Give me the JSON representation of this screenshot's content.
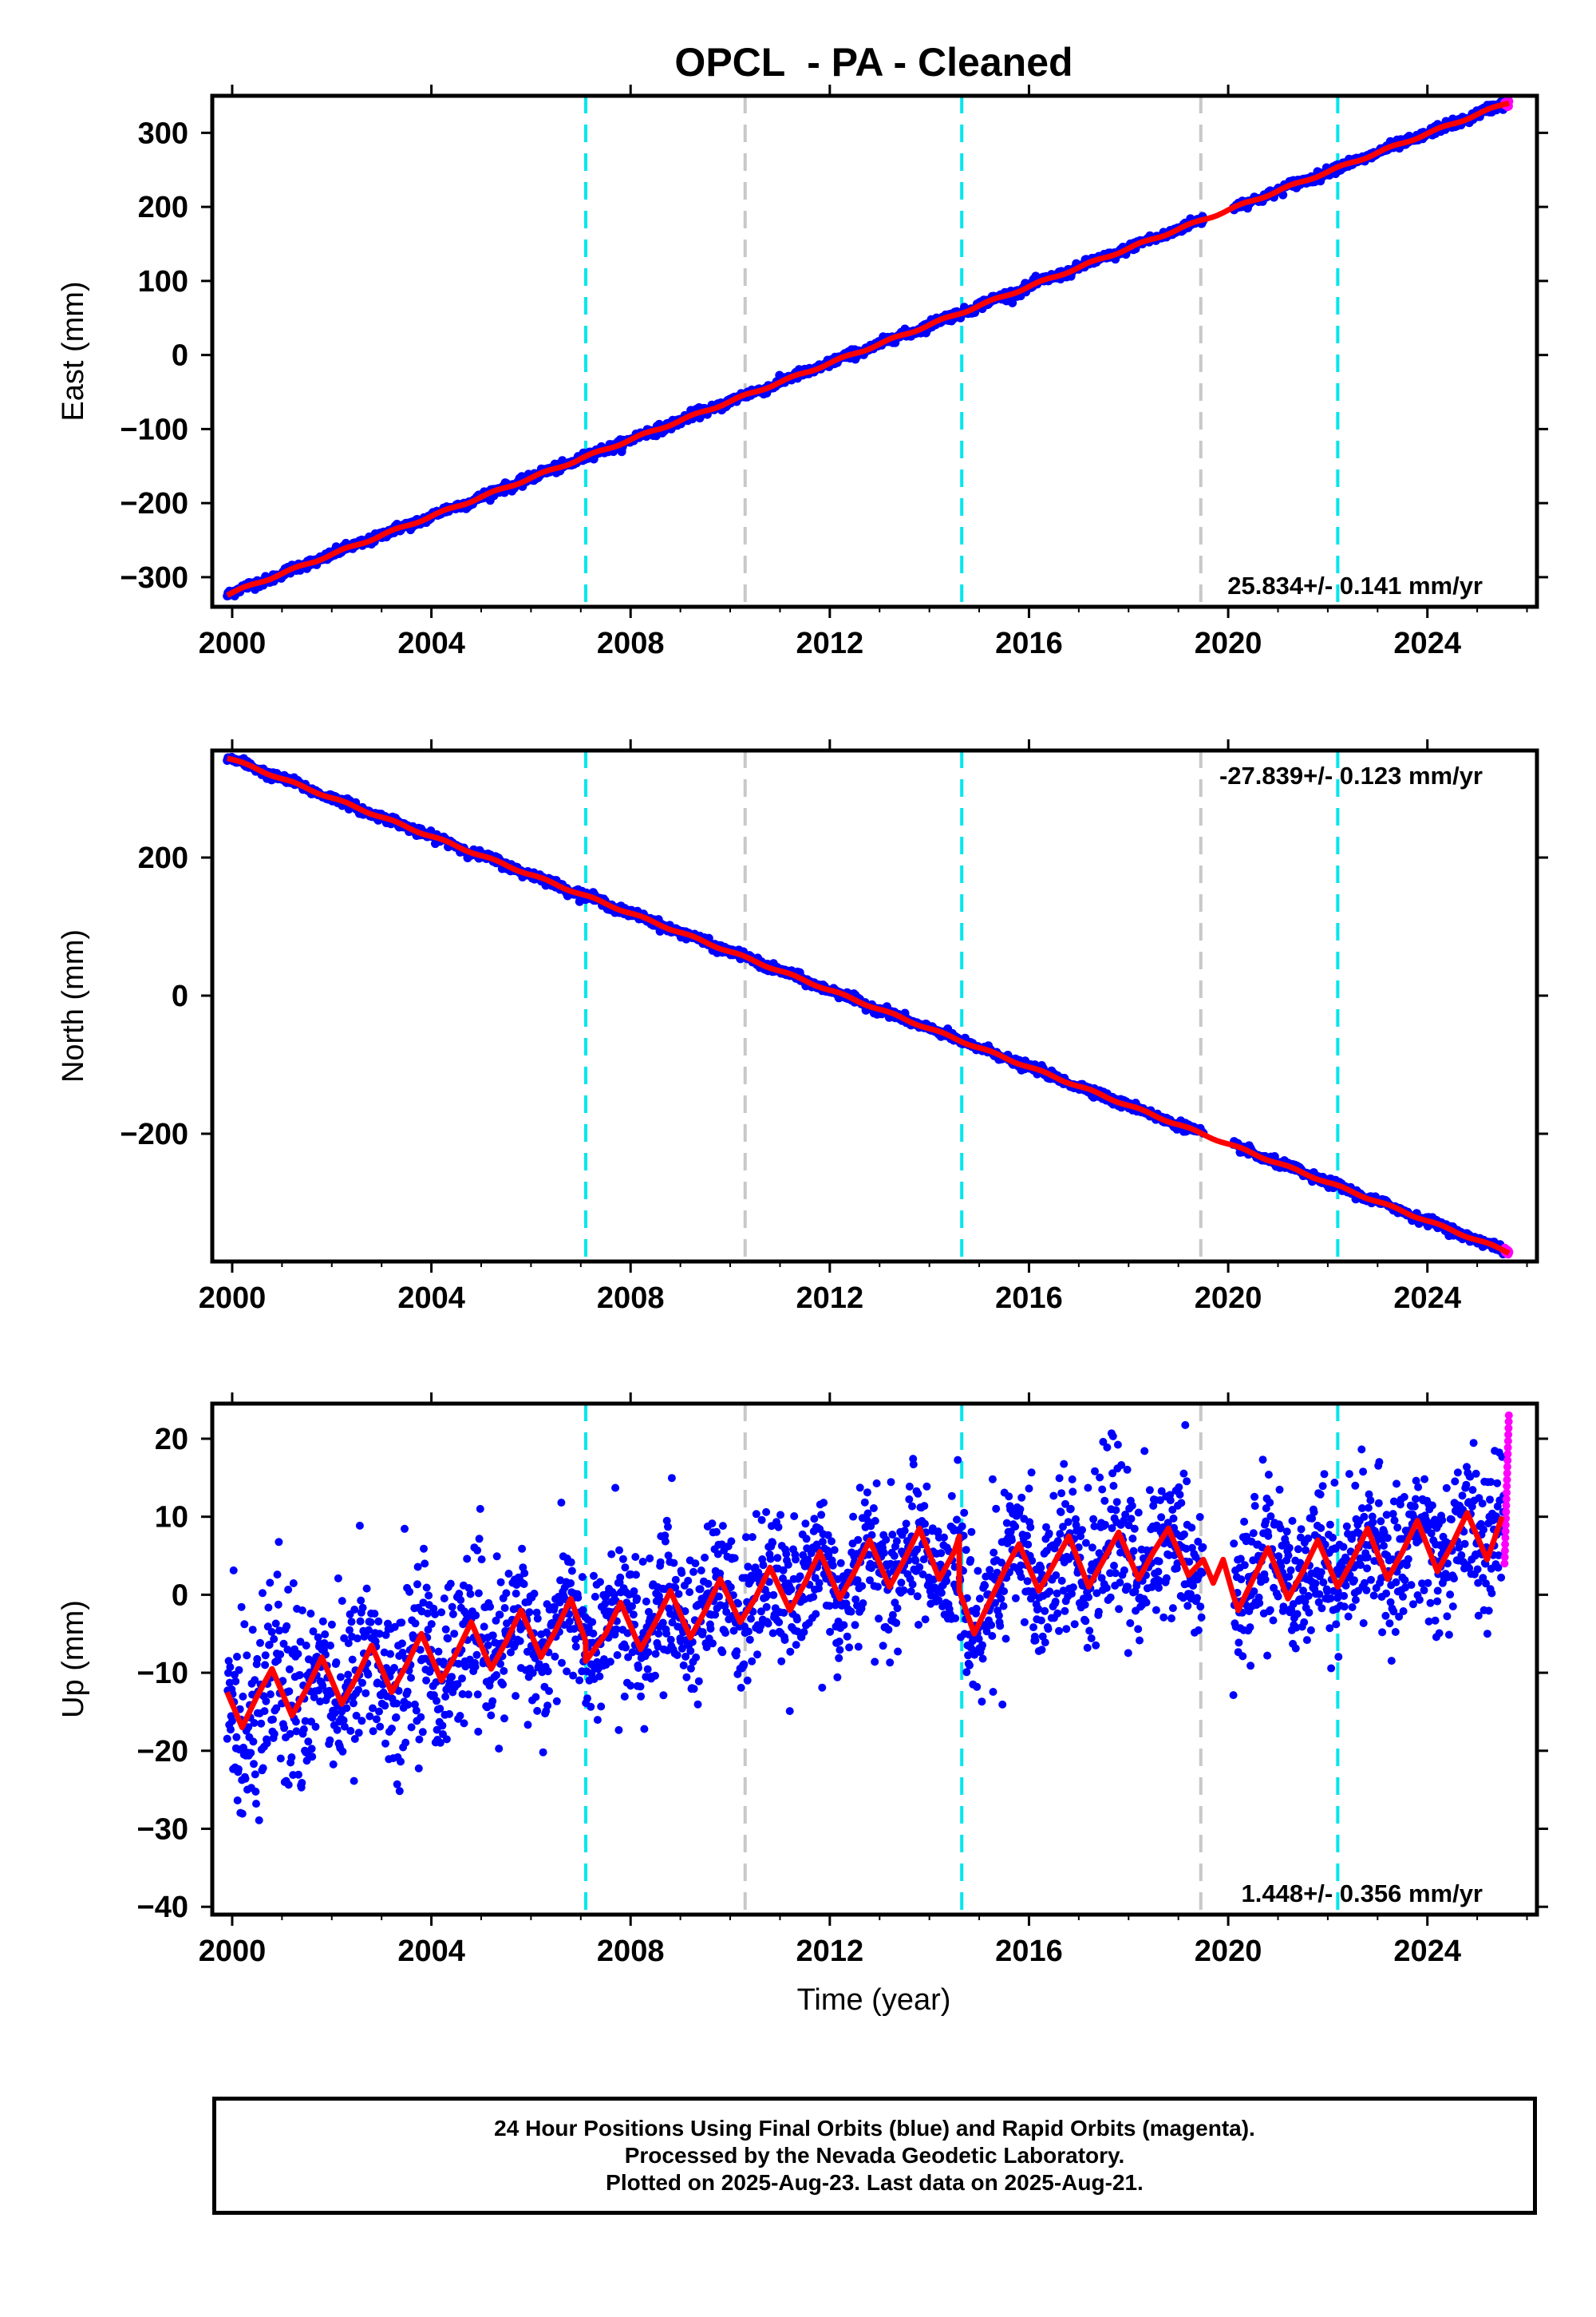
{
  "title": "OPCL  - PA - Cleaned",
  "xlabel": "Time (year)",
  "caption": {
    "line1": "24 Hour Positions Using Final Orbits (blue) and Rapid Orbits (magenta).",
    "line2": "Processed by the Nevada Geodetic Laboratory.",
    "line3": "Plotted on 2025-Aug-23. Last data on 2025-Aug-21."
  },
  "colors": {
    "final": "#0000ff",
    "rapid": "#ff00ff",
    "model": "#ff0000",
    "equipment_change": "#00e5ee",
    "earthquake": "#c8c8c8"
  },
  "chart_data": [
    {
      "type": "scatter",
      "panel": "east",
      "ylabel": "East (mm)",
      "xlim": [
        1999.6,
        2026.2
      ],
      "ylim": [
        -340,
        350
      ],
      "x_ticks": [
        2000,
        2004,
        2008,
        2012,
        2016,
        2020,
        2024
      ],
      "y_ticks": [
        -300,
        -200,
        -100,
        0,
        100,
        200,
        300
      ],
      "rate_label": "25.834+/- 0.141 mm/yr",
      "rate_position": "bottom-right",
      "rate": 25.834,
      "rate_sigma": 0.141,
      "value_at_2000": -321,
      "data_start": 1999.9,
      "data_end": 2025.64,
      "data_gap": [
        2019.5,
        2020.1
      ],
      "series": [
        {
          "name": "Final Orbits",
          "color": "#0000ff",
          "x_range": [
            1999.9,
            2025.55
          ],
          "scatter_mm": 3
        },
        {
          "name": "Rapid Orbits",
          "color": "#ff00ff",
          "x_range": [
            2025.55,
            2025.64
          ],
          "scatter_mm": 2
        }
      ],
      "model": {
        "color": "#ff0000",
        "linear_mm_per_yr": 25.834,
        "seasonal_amplitude_mm": 1.5
      }
    },
    {
      "type": "scatter",
      "panel": "north",
      "ylabel": "North (mm)",
      "xlim": [
        1999.6,
        2026.2
      ],
      "ylim": [
        -385,
        355
      ],
      "x_ticks": [
        2000,
        2004,
        2008,
        2012,
        2016,
        2020,
        2024
      ],
      "y_ticks": [
        -200,
        0,
        200
      ],
      "rate_label": "-27.839+/- 0.123 mm/yr",
      "rate_position": "top-right",
      "rate": -27.839,
      "rate_sigma": 0.123,
      "value_at_2000": 342,
      "data_start": 1999.9,
      "data_end": 2025.64,
      "data_gap": [
        2019.5,
        2020.1
      ],
      "series": [
        {
          "name": "Final Orbits",
          "color": "#0000ff",
          "x_range": [
            1999.9,
            2025.55
          ],
          "scatter_mm": 3
        },
        {
          "name": "Rapid Orbits",
          "color": "#ff00ff",
          "x_range": [
            2025.55,
            2025.64
          ],
          "scatter_mm": 2
        }
      ],
      "model": {
        "color": "#ff0000",
        "linear_mm_per_yr": -27.839,
        "seasonal_amplitude_mm": 1.5
      }
    },
    {
      "type": "scatter",
      "panel": "up",
      "ylabel": "Up (mm)",
      "xlim": [
        1999.6,
        2026.2
      ],
      "ylim": [
        -41,
        24.5
      ],
      "x_ticks": [
        2000,
        2004,
        2008,
        2012,
        2016,
        2020,
        2024
      ],
      "y_ticks": [
        -40,
        -30,
        -20,
        -10,
        0,
        10,
        20
      ],
      "rate_label": "1.448+/- 0.356 mm/yr",
      "rate_position": "bottom-right",
      "rate": 1.448,
      "rate_sigma": 0.356,
      "data_start": 1999.9,
      "data_end": 2025.64,
      "data_gap": [
        2019.5,
        2020.1
      ],
      "series": [
        {
          "name": "Final Orbits",
          "color": "#0000ff",
          "x_range": [
            1999.9,
            2025.55
          ],
          "scatter_mm": 5
        },
        {
          "name": "Rapid Orbits",
          "color": "#ff00ff",
          "x_range": [
            2025.55,
            2025.64
          ],
          "y_range": [
            4,
            23
          ]
        }
      ],
      "model_points": {
        "x": [
          1999.9,
          2000.2,
          2000.5,
          2000.8,
          2001.2,
          2001.5,
          2001.8,
          2002.2,
          2002.5,
          2002.8,
          2003.2,
          2003.5,
          2003.8,
          2004.2,
          2004.5,
          2004.8,
          2005.2,
          2005.5,
          2005.8,
          2006.2,
          2006.5,
          2006.8,
          2007.1,
          2007.1,
          2007.5,
          2007.8,
          2008.2,
          2008.5,
          2008.8,
          2009.2,
          2009.5,
          2009.8,
          2010.2,
          2010.5,
          2010.8,
          2011.2,
          2011.5,
          2011.8,
          2012.2,
          2012.5,
          2012.8,
          2013.2,
          2013.5,
          2013.8,
          2014.2,
          2014.5,
          2014.6,
          2014.6,
          2014.9,
          2015.2,
          2015.5,
          2015.8,
          2016.2,
          2016.5,
          2016.8,
          2017.2,
          2017.5,
          2017.8,
          2018.2,
          2018.5,
          2018.8,
          2019.2,
          2019.5,
          2019.7,
          2019.9,
          2020.1,
          2020.2,
          2020.5,
          2020.8,
          2021.2,
          2021.5,
          2021.8,
          2022.2,
          2022.5,
          2022.8,
          2023.2,
          2023.5,
          2023.8,
          2024.2,
          2024.5,
          2024.8,
          2025.2,
          2025.5
        ],
        "y": [
          -12.5,
          -17,
          -13,
          -9.5,
          -15.5,
          -12,
          -8,
          -14,
          -10.5,
          -6.5,
          -12.5,
          -9,
          -5,
          -11,
          -7.5,
          -3.5,
          -9.5,
          -6,
          -2,
          -8,
          -4.5,
          -0.5,
          -6,
          -8.5,
          -5,
          -1,
          -7,
          -3.5,
          0.5,
          -5.5,
          -2,
          2,
          -3.5,
          -0.5,
          3.5,
          -2,
          1.5,
          5.5,
          -0.5,
          3,
          7,
          1,
          4.5,
          8.5,
          2,
          5.5,
          7.5,
          0.5,
          -5,
          -1,
          3,
          6.5,
          0.5,
          4,
          7.5,
          1,
          4.5,
          8,
          2,
          5.5,
          8.5,
          2.5,
          4.5,
          1.5,
          4.5,
          0,
          -2,
          2,
          6,
          -0.5,
          3,
          7,
          1,
          4.5,
          8.5,
          2,
          5.5,
          9.5,
          3,
          6.5,
          10.5,
          4.5,
          10
        ]
      }
    }
  ],
  "event_lines": [
    {
      "year": 2007.1,
      "kind": "equipment_change"
    },
    {
      "year": 2010.3,
      "kind": "earthquake"
    },
    {
      "year": 2014.65,
      "kind": "equipment_change"
    },
    {
      "year": 2019.45,
      "kind": "earthquake"
    },
    {
      "year": 2022.2,
      "kind": "equipment_change"
    }
  ]
}
